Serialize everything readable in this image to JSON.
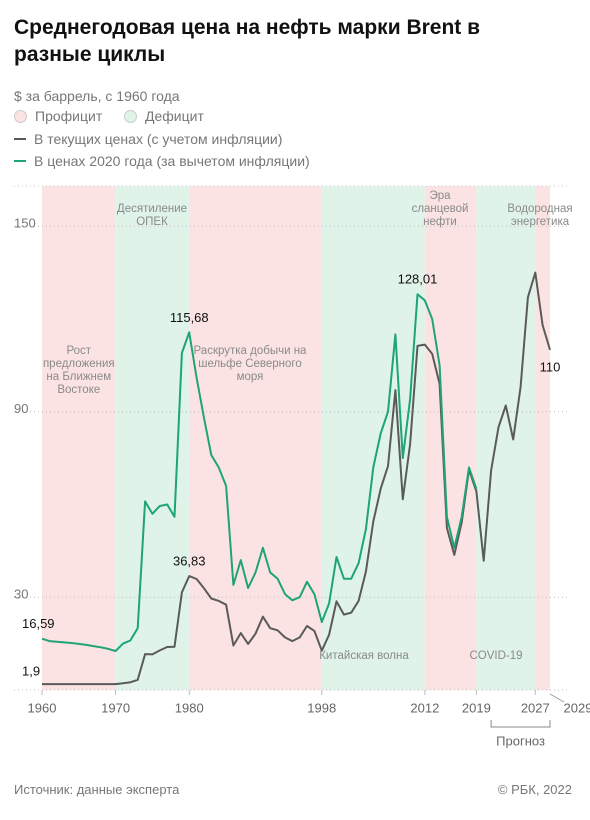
{
  "chart_data": {
    "type": "line",
    "title": "Среднегодовая цена на нефть марки Brent в разные циклы",
    "subtitle": "$ за баррель, с 1960 года",
    "band_legend": [
      {
        "name": "Профицит",
        "color": "#fbe3e3"
      },
      {
        "name": "Дефицит",
        "color": "#dff3e9"
      }
    ],
    "bands": [
      {
        "from": 1960,
        "to": 1970,
        "kind": 0,
        "label": "Рост предложения на Ближнем Востоке"
      },
      {
        "from": 1970,
        "to": 1980,
        "kind": 1,
        "label": "Десятиление ОПЕК"
      },
      {
        "from": 1980,
        "to": 1998,
        "kind": 0,
        "label": "Раскрутка добычи на шельфе Северного моря"
      },
      {
        "from": 1998,
        "to": 2012,
        "kind": 1,
        "label": "Китайская волна"
      },
      {
        "from": 2012,
        "to": 2019,
        "kind": 0,
        "label": "Эра сланцевой нефти"
      },
      {
        "from": 2019,
        "to": 2027,
        "kind": 1,
        "label": "COVID-19"
      },
      {
        "from": 2027,
        "to": 2029,
        "kind": 0,
        "label": "Водородная энергетика"
      }
    ],
    "x": [
      1960,
      1961,
      1962,
      1963,
      1964,
      1965,
      1966,
      1967,
      1968,
      1969,
      1970,
      1971,
      1972,
      1973,
      1974,
      1975,
      1976,
      1977,
      1978,
      1979,
      1980,
      1981,
      1982,
      1983,
      1984,
      1985,
      1986,
      1987,
      1988,
      1989,
      1990,
      1991,
      1992,
      1993,
      1994,
      1995,
      1996,
      1997,
      1998,
      1999,
      2000,
      2001,
      2002,
      2003,
      2004,
      2005,
      2006,
      2007,
      2008,
      2009,
      2010,
      2011,
      2012,
      2013,
      2014,
      2015,
      2016,
      2017,
      2018,
      2019,
      2020,
      2021,
      2022,
      2023,
      2024,
      2025,
      2026,
      2027,
      2028,
      2029
    ],
    "series": [
      {
        "name": "В текущих ценах (с учетом инфляции)",
        "color": "#5a5a5a",
        "values": [
          1.9,
          1.9,
          1.9,
          1.9,
          1.9,
          1.9,
          1.9,
          1.9,
          1.9,
          1.9,
          1.9,
          2.2,
          2.5,
          3.3,
          11.6,
          11.5,
          12.8,
          13.9,
          14,
          31.6,
          36.83,
          35.9,
          32.9,
          29.6,
          28.8,
          27.6,
          14.4,
          18.4,
          14.9,
          18.2,
          23.7,
          20,
          19.3,
          17,
          15.8,
          17,
          20.7,
          19.1,
          12.7,
          17.9,
          28.7,
          24.4,
          25,
          28.8,
          38.3,
          54.5,
          65.1,
          72.4,
          97,
          61.7,
          79.5,
          111.3,
          111.7,
          108.7,
          99,
          52.4,
          43.7,
          54.2,
          71.3,
          64.2,
          41.8,
          71,
          85,
          92,
          81,
          98,
          127,
          135,
          118,
          110
        ],
        "value_labels": [
          "1,9",
          null,
          null,
          null,
          null,
          null,
          null,
          null,
          null,
          null,
          null,
          null,
          null,
          null,
          null,
          null,
          null,
          null,
          null,
          null,
          "36,83",
          null,
          null,
          null,
          null,
          null,
          null,
          null,
          null,
          null,
          null,
          null,
          null,
          null,
          null,
          null,
          null,
          null,
          null,
          null,
          null,
          null,
          null,
          null,
          null,
          null,
          null,
          null,
          null,
          null,
          null,
          null,
          null,
          null,
          null,
          null,
          null,
          null,
          null,
          null,
          null,
          null,
          null,
          null,
          null,
          null,
          null,
          null,
          null,
          "110"
        ]
      },
      {
        "name": "В ценах 2020 года (за вычетом инфляции)",
        "color": "#1ea476",
        "values": [
          16.59,
          15.8,
          15.6,
          15.4,
          15.2,
          14.9,
          14.6,
          14.2,
          13.8,
          13.3,
          12.6,
          15,
          16,
          20,
          61,
          57,
          59.5,
          60,
          56,
          109,
          115.68,
          101,
          88,
          76,
          72,
          66,
          34,
          42,
          33,
          38,
          46,
          38,
          36,
          31,
          29,
          30,
          35,
          31,
          22,
          28,
          43,
          36,
          36,
          41,
          52,
          72,
          83,
          90,
          115,
          75,
          94,
          128.01,
          126,
          120,
          105,
          56,
          46,
          56,
          72,
          65,
          null,
          null,
          null,
          null,
          null,
          null,
          null,
          null,
          null,
          null
        ],
        "value_labels": [
          "16,59",
          null,
          null,
          null,
          null,
          null,
          null,
          null,
          null,
          null,
          null,
          null,
          null,
          null,
          null,
          null,
          null,
          null,
          null,
          null,
          "115,68",
          null,
          null,
          null,
          null,
          null,
          null,
          null,
          null,
          null,
          null,
          null,
          null,
          null,
          null,
          null,
          null,
          null,
          null,
          null,
          null,
          null,
          null,
          null,
          null,
          null,
          null,
          null,
          null,
          null,
          null,
          "128,01",
          null,
          null,
          null,
          null,
          null,
          null,
          null,
          null,
          null,
          null,
          null,
          null,
          null,
          null,
          null,
          null,
          null,
          null
        ]
      }
    ],
    "xlim": [
      1960,
      2029
    ],
    "xticks": [
      1960,
      1970,
      1980,
      1998,
      2012,
      2019,
      2027,
      2029
    ],
    "ylim": [
      0,
      163
    ],
    "yticks": [
      30,
      90,
      150
    ],
    "grid": true,
    "forecast": {
      "from": 2021,
      "to": 2029,
      "label": "Прогноз"
    },
    "source": "Источник:  данные эксперта",
    "credit": "© РБК, 2022"
  }
}
